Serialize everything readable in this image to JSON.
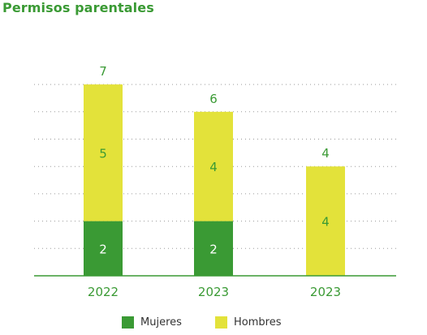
{
  "title": "Permisos parentales",
  "chart_data": {
    "type": "bar",
    "stacked": true,
    "categories": [
      "2022",
      "2023",
      "2023"
    ],
    "series": [
      {
        "name": "Mujeres",
        "values": [
          2,
          2,
          0
        ],
        "color": "#3a9a34"
      },
      {
        "name": "Hombres",
        "values": [
          5,
          4,
          4
        ],
        "color": "#e3e23a"
      }
    ],
    "totals": [
      7,
      6,
      4
    ],
    "ylim": [
      0,
      8
    ],
    "grid": true,
    "legend": "bottom",
    "label_color": "#3a9a34",
    "gridline_color": "#9a9a9a"
  }
}
